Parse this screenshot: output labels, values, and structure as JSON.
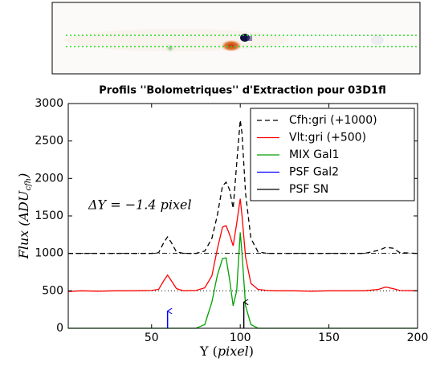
{
  "chart_data": {
    "type": "line",
    "title": "Profils ''Bolometriques'' d'Extraction pour 03D1fl",
    "xlabel": [
      "Y (",
      "pixel",
      ")"
    ],
    "ylabel": [
      "Flux (",
      "ADU",
      "cfh",
      ")"
    ],
    "annotation": "ΔY = −1.4 pixel",
    "xlim": [
      3,
      200
    ],
    "ylim": [
      0,
      3000
    ],
    "xticks": [
      50,
      100,
      150,
      200
    ],
    "yticks": [
      0,
      500,
      1000,
      1500,
      2000,
      2500,
      3000
    ],
    "grid": false,
    "legend": "upper right",
    "reference_lines": [
      {
        "value": 500,
        "style": "dotted"
      },
      {
        "value": 1000,
        "style": "dashdot"
      }
    ],
    "x": [
      3,
      10,
      20,
      30,
      40,
      50,
      54,
      57,
      59,
      61,
      64,
      68,
      75,
      80,
      84,
      87,
      90,
      92,
      94,
      96,
      98,
      100,
      101,
      103,
      106,
      110,
      115,
      120,
      130,
      140,
      150,
      160,
      170,
      178,
      182,
      186,
      190,
      200
    ],
    "series": [
      {
        "name": "Cfh:gri (+1000)",
        "color": "#000000",
        "linestyle": "dashed",
        "values": [
          1000,
          1000,
          1000,
          1000,
          1000,
          1000,
          1010,
          1150,
          1220,
          1150,
          1020,
          1000,
          1000,
          1030,
          1200,
          1500,
          1900,
          1950,
          1850,
          1600,
          2200,
          2780,
          2600,
          1800,
          1200,
          1020,
          1000,
          1000,
          1000,
          1000,
          1000,
          1000,
          1000,
          1040,
          1080,
          1070,
          1010,
          1000
        ]
      },
      {
        "name": "Vlt:gri (+500)",
        "color": "#ff0000",
        "linestyle": "solid",
        "values": [
          490,
          500,
          495,
          500,
          500,
          505,
          520,
          640,
          710,
          640,
          530,
          500,
          505,
          540,
          700,
          1050,
          1350,
          1370,
          1250,
          1100,
          1400,
          1730,
          1500,
          950,
          600,
          520,
          505,
          500,
          500,
          495,
          500,
          500,
          500,
          520,
          550,
          530,
          505,
          500
        ]
      },
      {
        "name": "MIX Gal1",
        "color": "#00a000",
        "linestyle": "solid",
        "values": [
          0,
          0,
          0,
          0,
          0,
          0,
          0,
          0,
          0,
          0,
          0,
          0,
          0,
          50,
          350,
          700,
          930,
          940,
          650,
          300,
          500,
          1280,
          1000,
          300,
          50,
          0,
          0,
          0,
          0,
          0,
          0,
          0,
          0,
          0,
          0,
          0,
          0,
          0
        ]
      },
      {
        "name": "PSF Gal2",
        "color": "#0000ff",
        "linestyle": "arrow",
        "x": [
          59,
          59
        ],
        "values": [
          0,
          230
        ]
      },
      {
        "name": "PSF SN",
        "color": "#000000",
        "linestyle": "arrow",
        "x": [
          102,
          102
        ],
        "values": [
          0,
          350
        ]
      }
    ]
  }
}
